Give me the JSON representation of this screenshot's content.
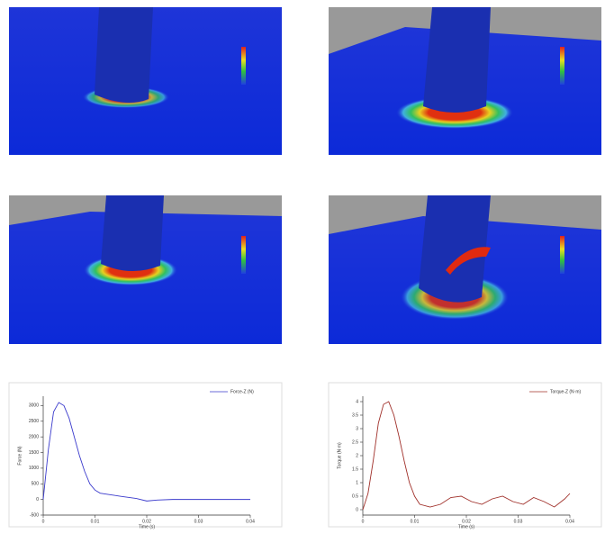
{
  "chart_data": [
    {
      "type": "line",
      "xlabel": "Time (s)",
      "ylabel": "Force (N)",
      "x": [
        0,
        0.001,
        0.002,
        0.003,
        0.004,
        0.005,
        0.006,
        0.007,
        0.008,
        0.009,
        0.01,
        0.011,
        0.013,
        0.015,
        0.018,
        0.02,
        0.022,
        0.025,
        0.03,
        0.035,
        0.04
      ],
      "series": [
        {
          "name": "Force-Z (N)",
          "color": "#3a3acc",
          "values": [
            0,
            1600,
            2800,
            3100,
            3000,
            2600,
            2000,
            1400,
            900,
            500,
            300,
            200,
            150,
            100,
            30,
            -50,
            -20,
            0,
            0,
            0,
            0
          ]
        }
      ],
      "xlim": [
        0,
        0.04
      ],
      "ylim": [
        -500,
        3300
      ],
      "xticks": [
        0,
        0.01,
        0.02,
        0.03,
        0.04
      ],
      "yticks": [
        -500,
        0,
        500,
        1000,
        1500,
        2000,
        2500,
        3000
      ]
    },
    {
      "type": "line",
      "xlabel": "Time (s)",
      "ylabel": "Torque (N·m)",
      "x": [
        0,
        0.001,
        0.002,
        0.003,
        0.004,
        0.005,
        0.006,
        0.007,
        0.008,
        0.009,
        0.01,
        0.011,
        0.013,
        0.015,
        0.017,
        0.019,
        0.021,
        0.023,
        0.025,
        0.027,
        0.029,
        0.031,
        0.033,
        0.035,
        0.037,
        0.039,
        0.04
      ],
      "series": [
        {
          "name": "Torque-Z (N·m)",
          "color": "#a0302a",
          "values": [
            0,
            0.6,
            1.8,
            3.2,
            3.9,
            4.0,
            3.5,
            2.7,
            1.8,
            1.0,
            0.5,
            0.2,
            0.1,
            0.2,
            0.45,
            0.5,
            0.3,
            0.2,
            0.4,
            0.5,
            0.3,
            0.2,
            0.45,
            0.3,
            0.1,
            0.4,
            0.6
          ]
        }
      ],
      "xlim": [
        0,
        0.04
      ],
      "ylim": [
        -0.2,
        4.2
      ],
      "xticks": [
        0,
        0.01,
        0.02,
        0.03,
        0.04
      ],
      "yticks": [
        0,
        0.5,
        1,
        1.5,
        2,
        2.5,
        3,
        3.5,
        4
      ]
    }
  ]
}
